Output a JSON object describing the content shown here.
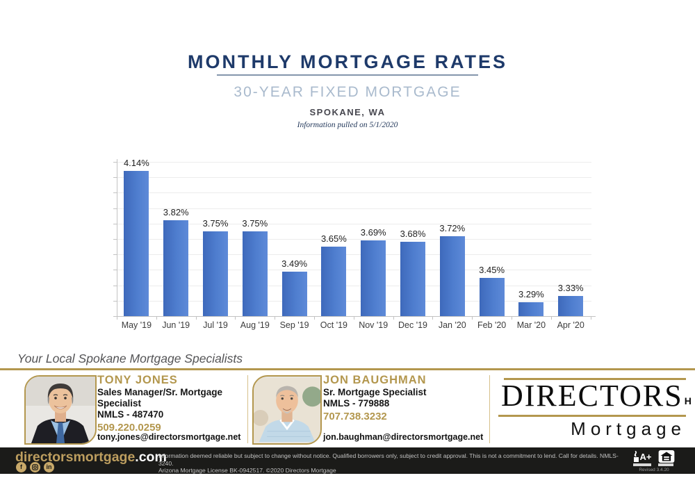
{
  "header": {
    "title": "MONTHLY MORTGAGE RATES",
    "subtitle": "30-YEAR FIXED MORTGAGE",
    "location": "SPOKANE, WA",
    "pulled": "Information pulled on 5/1/2020"
  },
  "chart_data": {
    "type": "bar",
    "categories": [
      "May '19",
      "Jun '19",
      "Jul '19",
      "Aug '19",
      "Sep '19",
      "Oct '19",
      "Nov '19",
      "Dec '19",
      "Jan '20",
      "Feb '20",
      "Mar '20",
      "Apr '20"
    ],
    "values": [
      4.14,
      3.82,
      3.75,
      3.75,
      3.49,
      3.65,
      3.69,
      3.68,
      3.72,
      3.45,
      3.29,
      3.33
    ],
    "value_label_format": "percent_2dp",
    "title": "",
    "xlabel": "",
    "ylabel": "",
    "ylim": [
      3.2,
      4.2
    ],
    "grid": true,
    "gridline_step": 0.1,
    "legend": "none",
    "bar_color": "#4472c4"
  },
  "specialists": {
    "heading": "Your Local Spokane Mortgage Specialists",
    "agents": [
      {
        "name": "TONY JONES",
        "title": "Sales Manager/Sr. Mortgage Specialist",
        "nmls": "NMLS - 487470",
        "phone": "509.220.0259",
        "email": "tony.jones@directorsmortgage.net"
      },
      {
        "name": "JON BAUGHMAN",
        "title": "Sr. Mortgage Specialist",
        "nmls": "NMLS - 779888",
        "phone": "707.738.3232",
        "email": "jon.baughman@directorsmortgage.net"
      }
    ]
  },
  "logo": {
    "brand": "DIRECTORS",
    "mark": "H",
    "sub": "Mortgage"
  },
  "footer": {
    "site_gold": "directorsmortgage",
    "site_white": ".com",
    "social": [
      "facebook",
      "instagram",
      "linkedin"
    ],
    "disclaimer_line1": "Information deemed reliable but subject to change without notice. Qualified borrowers only, subject to credit approval. This is not a commitment to lend. Call for details. NMLS-3240.",
    "disclaimer_line2": "Arizona Mortgage License BK-0942517. ©2020 Directors Mortgage",
    "revised": "Revised 3.4.20"
  },
  "colors": {
    "navy_title": "#1e3a6a",
    "subtitle_blue": "#a9bacd",
    "bar_blue": "#4472c4",
    "brand_gold": "#b3974e",
    "footer_bg": "#1b1b19"
  }
}
